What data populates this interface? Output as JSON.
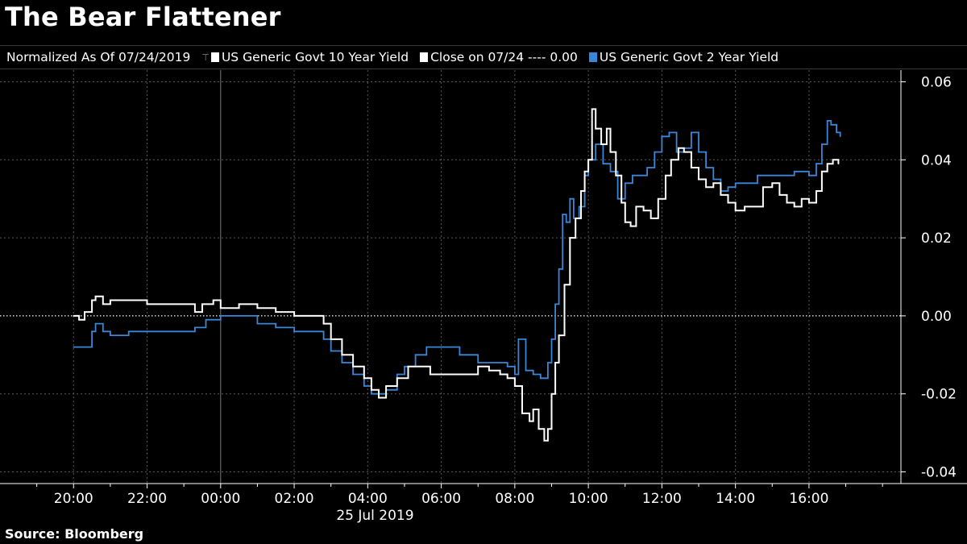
{
  "title": "The Bear Flattener",
  "legend": {
    "normalized": "Normalized As Of 07/24/2019",
    "ten_year": "US Generic Govt 10 Year Yield",
    "close": "Close on 07/24 ---- 0.00",
    "two_year": "US Generic Govt 2 Year Yield"
  },
  "source": "Source: Bloomberg",
  "colors": {
    "ten_year": "#ffffff",
    "two_year": "#3a86d9",
    "background": "#000000"
  },
  "chart_data": {
    "type": "line",
    "title": "The Bear Flattener",
    "xlabel": "25 Jul 2019",
    "ylabel": "",
    "x_ticks": [
      "20:00",
      "22:00",
      "00:00",
      "02:00",
      "04:00",
      "06:00",
      "08:00",
      "10:00",
      "12:00",
      "14:00",
      "16:00"
    ],
    "x_tick_hours": [
      20,
      22,
      24,
      26,
      28,
      30,
      32,
      34,
      36,
      38,
      40
    ],
    "x_range_hours": [
      18,
      42.5
    ],
    "ylim": [
      -0.043,
      0.063
    ],
    "y_ticks": [
      -0.04,
      -0.02,
      0.0,
      0.02,
      0.04,
      0.06
    ],
    "y_tick_labels": [
      "-0.04",
      "-0.02",
      "0.00",
      "0.02",
      "0.04",
      "0.06"
    ],
    "reference_line": 0.0,
    "grid": true,
    "legend_position": "top",
    "series": [
      {
        "name": "US Generic Govt 10 Year Yield",
        "color": "#ffffff",
        "x": [
          20.0,
          20.15,
          20.3,
          20.5,
          20.6,
          20.8,
          21.0,
          21.5,
          22.0,
          22.5,
          23.0,
          23.3,
          23.5,
          23.8,
          24.0,
          24.5,
          25.0,
          25.5,
          26.0,
          26.5,
          26.8,
          27.0,
          27.3,
          27.6,
          27.9,
          28.1,
          28.3,
          28.5,
          28.8,
          29.1,
          29.4,
          29.7,
          30.0,
          30.5,
          31.0,
          31.3,
          31.6,
          31.8,
          32.0,
          32.2,
          32.4,
          32.5,
          32.65,
          32.8,
          32.9,
          33.0,
          33.1,
          33.2,
          33.35,
          33.5,
          33.65,
          33.8,
          33.9,
          34.0,
          34.1,
          34.2,
          34.35,
          34.5,
          34.6,
          34.75,
          34.9,
          35.0,
          35.15,
          35.3,
          35.5,
          35.7,
          35.9,
          36.1,
          36.25,
          36.45,
          36.6,
          36.8,
          37.0,
          37.2,
          37.4,
          37.6,
          37.8,
          38.0,
          38.25,
          38.5,
          38.75,
          39.0,
          39.2,
          39.4,
          39.6,
          39.8,
          40.0,
          40.2,
          40.35,
          40.5,
          40.65,
          40.8
        ],
        "y": [
          0.0,
          -0.001,
          0.001,
          0.004,
          0.005,
          0.003,
          0.004,
          0.004,
          0.003,
          0.003,
          0.003,
          0.001,
          0.003,
          0.004,
          0.002,
          0.003,
          0.002,
          0.001,
          0.0,
          0.0,
          -0.002,
          -0.006,
          -0.01,
          -0.013,
          -0.016,
          -0.019,
          -0.021,
          -0.018,
          -0.016,
          -0.013,
          -0.013,
          -0.015,
          -0.015,
          -0.015,
          -0.013,
          -0.014,
          -0.015,
          -0.016,
          -0.018,
          -0.025,
          -0.027,
          -0.024,
          -0.029,
          -0.032,
          -0.029,
          -0.02,
          -0.012,
          -0.005,
          0.008,
          0.02,
          0.025,
          0.032,
          0.037,
          0.04,
          0.053,
          0.048,
          0.044,
          0.048,
          0.042,
          0.036,
          0.029,
          0.024,
          0.023,
          0.028,
          0.027,
          0.025,
          0.03,
          0.036,
          0.04,
          0.043,
          0.042,
          0.038,
          0.035,
          0.033,
          0.034,
          0.031,
          0.029,
          0.027,
          0.028,
          0.028,
          0.033,
          0.034,
          0.031,
          0.029,
          0.028,
          0.03,
          0.029,
          0.032,
          0.037,
          0.039,
          0.04,
          0.039
        ]
      },
      {
        "name": "US Generic Govt 2 Year Yield",
        "color": "#3a86d9",
        "x": [
          20.0,
          20.3,
          20.5,
          20.6,
          20.8,
          21.0,
          21.5,
          22.0,
          22.5,
          23.0,
          23.3,
          23.6,
          24.0,
          24.5,
          25.0,
          25.5,
          26.0,
          26.5,
          26.8,
          27.0,
          27.3,
          27.6,
          27.9,
          28.1,
          28.3,
          28.5,
          28.8,
          29.0,
          29.3,
          29.6,
          30.0,
          30.5,
          31.0,
          31.5,
          31.8,
          32.0,
          32.1,
          32.3,
          32.5,
          32.7,
          32.9,
          33.0,
          33.1,
          33.2,
          33.3,
          33.4,
          33.5,
          33.6,
          33.75,
          33.9,
          34.0,
          34.2,
          34.4,
          34.6,
          34.8,
          35.0,
          35.2,
          35.4,
          35.6,
          35.8,
          36.0,
          36.2,
          36.4,
          36.6,
          36.8,
          37.0,
          37.2,
          37.4,
          37.6,
          37.8,
          38.0,
          38.3,
          38.6,
          39.0,
          39.3,
          39.6,
          40.0,
          40.2,
          40.35,
          40.5,
          40.6,
          40.75,
          40.85
        ],
        "y": [
          -0.008,
          -0.008,
          -0.004,
          -0.002,
          -0.004,
          -0.005,
          -0.004,
          -0.004,
          -0.004,
          -0.004,
          -0.003,
          -0.001,
          0.0,
          0.0,
          -0.002,
          -0.003,
          -0.004,
          -0.004,
          -0.006,
          -0.009,
          -0.012,
          -0.015,
          -0.018,
          -0.02,
          -0.02,
          -0.019,
          -0.015,
          -0.013,
          -0.01,
          -0.008,
          -0.008,
          -0.01,
          -0.012,
          -0.012,
          -0.013,
          -0.015,
          -0.006,
          -0.014,
          -0.015,
          -0.016,
          -0.012,
          -0.006,
          0.003,
          0.012,
          0.026,
          0.024,
          0.03,
          0.025,
          0.028,
          0.036,
          0.04,
          0.044,
          0.039,
          0.037,
          0.03,
          0.034,
          0.036,
          0.036,
          0.038,
          0.042,
          0.046,
          0.047,
          0.042,
          0.043,
          0.047,
          0.042,
          0.038,
          0.035,
          0.032,
          0.033,
          0.034,
          0.034,
          0.036,
          0.036,
          0.036,
          0.037,
          0.036,
          0.039,
          0.044,
          0.05,
          0.049,
          0.047,
          0.046
        ]
      }
    ]
  }
}
